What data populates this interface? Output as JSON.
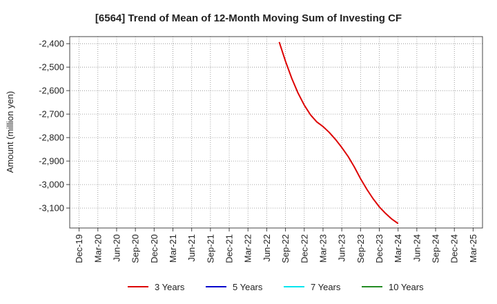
{
  "chart_data": {
    "type": "line",
    "title": "[6564]  Trend of Mean of 12-Month Moving Sum of Investing CF",
    "xlabel": "",
    "ylabel": "Amount (million yen)",
    "ylim": [
      -3185,
      -2370
    ],
    "yticks": [
      -2400,
      -2500,
      -2600,
      -2700,
      -2800,
      -2900,
      -3000,
      -3100
    ],
    "ytick_labels": [
      "-2,400",
      "-2,500",
      "-2,600",
      "-2,700",
      "-2,800",
      "-2,900",
      "-3,000",
      "-3,100"
    ],
    "x_ticks": [
      "Dec-19",
      "Mar-20",
      "Jun-20",
      "Sep-20",
      "Dec-20",
      "Mar-21",
      "Jun-21",
      "Sep-21",
      "Dec-21",
      "Mar-22",
      "Jun-22",
      "Sep-22",
      "Dec-22",
      "Mar-23",
      "Jun-23",
      "Sep-23",
      "Dec-23",
      "Mar-24",
      "Jun-24",
      "Sep-24",
      "Dec-24",
      "Mar-25"
    ],
    "grid": true,
    "legend_position": "bottom",
    "series": [
      {
        "name": "3 Years",
        "color": "#dd0000",
        "x": [
          "2022-08",
          "2022-09",
          "2022-10",
          "2022-11",
          "2022-12",
          "2023-01",
          "2023-02",
          "2023-03",
          "2023-04",
          "2023-05",
          "2023-06",
          "2023-07",
          "2023-08",
          "2023-09",
          "2023-10",
          "2023-11",
          "2023-12",
          "2024-01",
          "2024-02",
          "2024-03"
        ],
        "values": [
          -2393,
          -2475,
          -2548,
          -2610,
          -2662,
          -2703,
          -2733,
          -2753,
          -2778,
          -2808,
          -2842,
          -2880,
          -2925,
          -2975,
          -3020,
          -3060,
          -3095,
          -3123,
          -3147,
          -3166
        ]
      },
      {
        "name": "5 Years",
        "color": "#0000cc",
        "x": [],
        "values": []
      },
      {
        "name": "7 Years",
        "color": "#00e5ee",
        "x": [],
        "values": []
      },
      {
        "name": "10 Years",
        "color": "#228b22",
        "x": [],
        "values": []
      }
    ]
  }
}
